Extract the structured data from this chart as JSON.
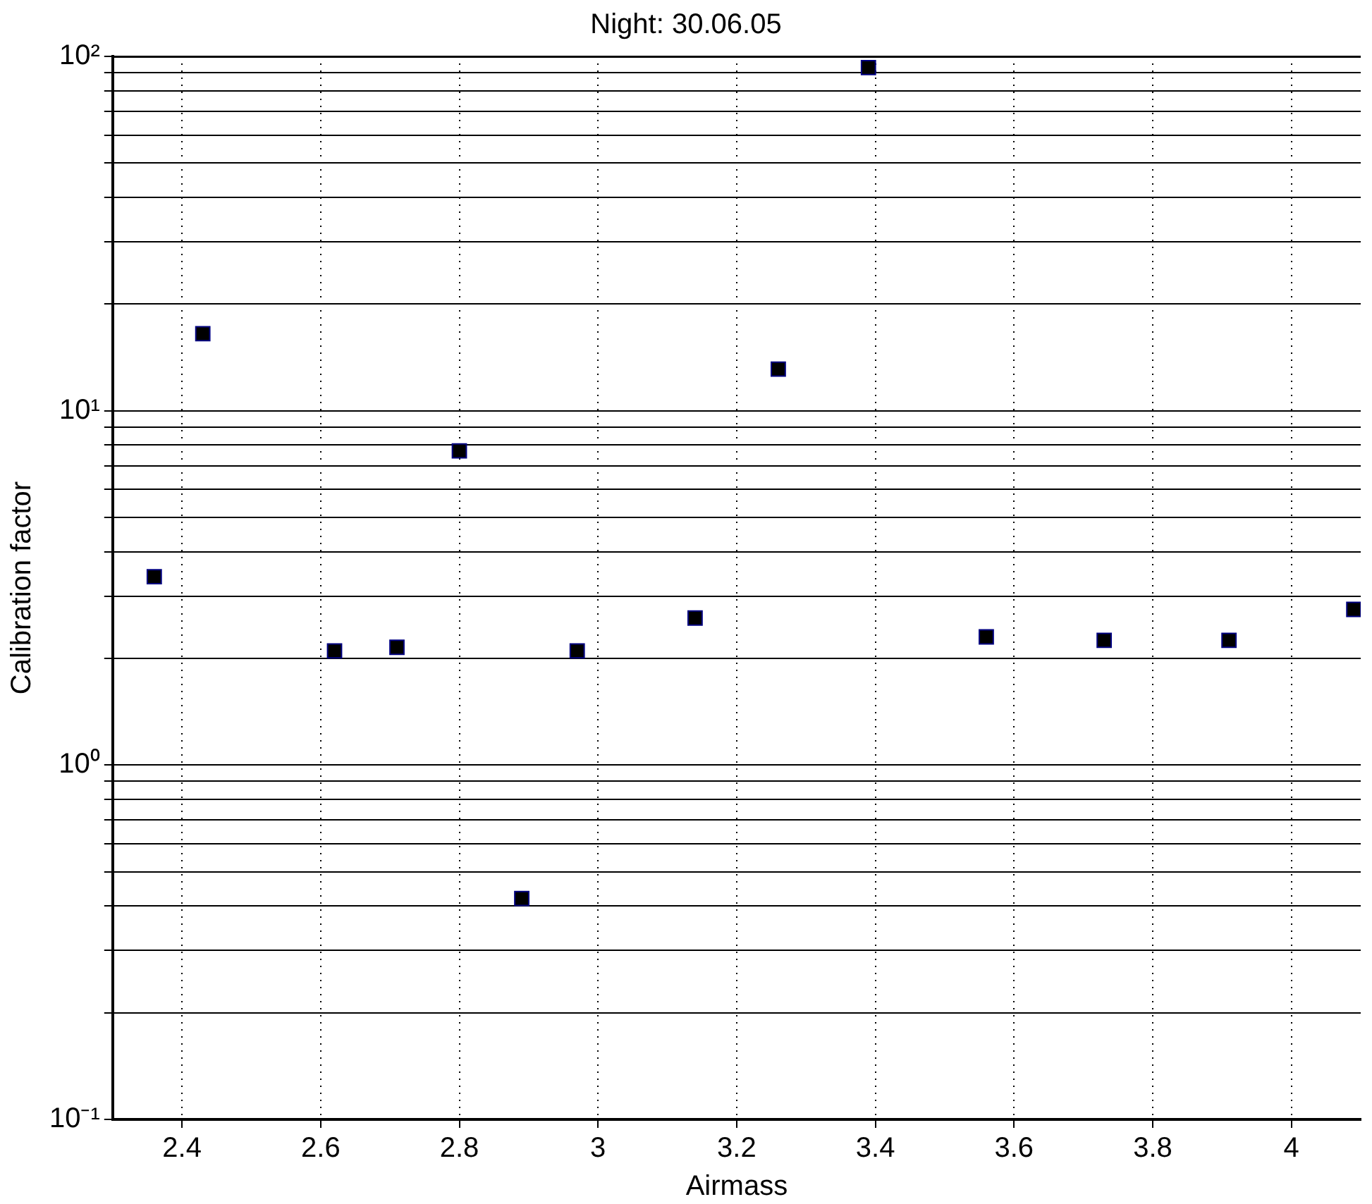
{
  "chart_data": {
    "type": "scatter",
    "title": "Night: 30.06.05",
    "xlabel": "Airmass",
    "ylabel": "Calibration factor",
    "x": [
      2.36,
      2.43,
      2.62,
      2.71,
      2.8,
      2.89,
      2.97,
      3.14,
      3.26,
      3.39,
      3.56,
      3.73,
      3.91,
      4.09
    ],
    "series": [
      {
        "color": "#000000",
        "values": [
          3.4,
          16.5,
          2.1,
          2.15,
          7.7,
          0.42,
          2.1,
          2.6,
          13.1,
          93,
          2.3,
          2.25,
          2.25,
          2.75
        ]
      }
    ],
    "log": "y",
    "marker": "square",
    "grid": true,
    "legend": false,
    "xlim": [
      2.3,
      4.1
    ],
    "xticks": [
      2.4,
      2.6,
      2.8,
      3,
      3.2,
      3.4,
      3.6,
      3.8,
      4
    ],
    "ylim": [
      0.1,
      100
    ],
    "yticks": [
      {
        "value": 0.1,
        "label": "10⁻¹"
      },
      {
        "value": 0.2,
        "label": null
      },
      {
        "value": 0.3,
        "label": null
      },
      {
        "value": 0.4,
        "label": null
      },
      {
        "value": 0.5,
        "label": null
      },
      {
        "value": 0.6,
        "label": null
      },
      {
        "value": 0.7,
        "label": null
      },
      {
        "value": 0.8,
        "label": null
      },
      {
        "value": 0.9,
        "label": null
      },
      {
        "value": 1,
        "label": "10⁰"
      },
      {
        "value": 2,
        "label": null
      },
      {
        "value": 3,
        "label": null
      },
      {
        "value": 4,
        "label": null
      },
      {
        "value": 5,
        "label": null
      },
      {
        "value": 6,
        "label": null
      },
      {
        "value": 7,
        "label": null
      },
      {
        "value": 8,
        "label": null
      },
      {
        "value": 9,
        "label": null
      },
      {
        "value": 10,
        "label": "10¹"
      },
      {
        "value": 20,
        "label": null
      },
      {
        "value": 30,
        "label": null
      },
      {
        "value": 40,
        "label": null
      },
      {
        "value": 50,
        "label": null
      },
      {
        "value": 60,
        "label": null
      },
      {
        "value": 70,
        "label": null
      },
      {
        "value": 80,
        "label": null
      },
      {
        "value": 90,
        "label": null
      },
      {
        "value": 100,
        "label": "10²"
      }
    ]
  }
}
